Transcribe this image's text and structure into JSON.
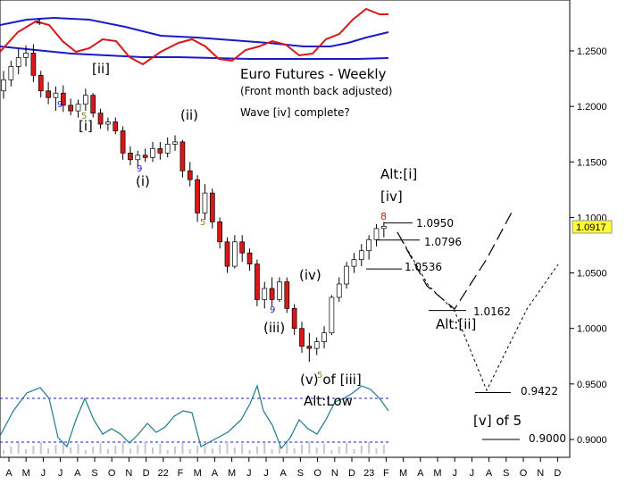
{
  "chart_data": {
    "type": "candlestick",
    "title": "Euro Futures - Weekly",
    "subtitle": "(Front month back adjusted)",
    "note": "Wave [iv] complete?",
    "last_price": "1.0917",
    "y_ticks": [
      "1.2500",
      "1.2000",
      "1.1500",
      "1.1000",
      "1.0500",
      "1.0000",
      "0.9500",
      "0.9000"
    ],
    "y_tick_values": [
      1.25,
      1.2,
      1.15,
      1.1,
      1.05,
      1.0,
      0.95,
      0.9
    ],
    "x_ticks": [
      "A",
      "M",
      "J",
      "J",
      "A",
      "S",
      "O",
      "N",
      "D",
      "22",
      "F",
      "M",
      "A",
      "M",
      "J",
      "J",
      "A",
      "S",
      "O",
      "N",
      "D",
      "23",
      "F",
      "M",
      "A",
      "M",
      "J",
      "J",
      "A",
      "S",
      "O",
      "N",
      "D"
    ],
    "ylim": [
      0.88,
      1.31
    ],
    "candles": [
      [
        1.214,
        1.232,
        1.207,
        1.224
      ],
      [
        1.224,
        1.241,
        1.218,
        1.236
      ],
      [
        1.236,
        1.252,
        1.229,
        1.244
      ],
      [
        1.244,
        1.255,
        1.236,
        1.248
      ],
      [
        1.248,
        1.256,
        1.222,
        1.228
      ],
      [
        1.228,
        1.232,
        1.208,
        1.214
      ],
      [
        1.214,
        1.222,
        1.202,
        1.208
      ],
      [
        1.208,
        1.218,
        1.196,
        1.212
      ],
      [
        1.212,
        1.219,
        1.195,
        1.201
      ],
      [
        1.201,
        1.207,
        1.192,
        1.196
      ],
      [
        1.196,
        1.206,
        1.19,
        1.202
      ],
      [
        1.202,
        1.216,
        1.196,
        1.21
      ],
      [
        1.21,
        1.212,
        1.19,
        1.194
      ],
      [
        1.194,
        1.198,
        1.18,
        1.184
      ],
      [
        1.184,
        1.19,
        1.178,
        1.186
      ],
      [
        1.186,
        1.19,
        1.175,
        1.178
      ],
      [
        1.178,
        1.182,
        1.152,
        1.158
      ],
      [
        1.158,
        1.164,
        1.147,
        1.152
      ],
      [
        1.152,
        1.16,
        1.146,
        1.156
      ],
      [
        1.156,
        1.162,
        1.15,
        1.154
      ],
      [
        1.154,
        1.168,
        1.15,
        1.162
      ],
      [
        1.162,
        1.168,
        1.152,
        1.158
      ],
      [
        1.158,
        1.172,
        1.154,
        1.166
      ],
      [
        1.166,
        1.174,
        1.16,
        1.168
      ],
      [
        1.168,
        1.17,
        1.136,
        1.142
      ],
      [
        1.142,
        1.15,
        1.128,
        1.134
      ],
      [
        1.134,
        1.138,
        1.096,
        1.104
      ],
      [
        1.104,
        1.13,
        1.098,
        1.122
      ],
      [
        1.122,
        1.126,
        1.09,
        1.096
      ],
      [
        1.096,
        1.1,
        1.072,
        1.078
      ],
      [
        1.078,
        1.082,
        1.05,
        1.056
      ],
      [
        1.056,
        1.084,
        1.054,
        1.078
      ],
      [
        1.078,
        1.084,
        1.06,
        1.068
      ],
      [
        1.068,
        1.072,
        1.052,
        1.058
      ],
      [
        1.058,
        1.062,
        1.02,
        1.026
      ],
      [
        1.026,
        1.042,
        1.018,
        1.036
      ],
      [
        1.036,
        1.046,
        1.02,
        1.026
      ],
      [
        1.026,
        1.046,
        1.024,
        1.042
      ],
      [
        1.042,
        1.046,
        1.014,
        1.018
      ],
      [
        1.018,
        1.022,
        0.994,
        1.0
      ],
      [
        1.0,
        1.006,
        0.978,
        0.984
      ],
      [
        0.984,
        0.996,
        0.97,
        0.982
      ],
      [
        0.982,
        0.992,
        0.976,
        0.988
      ],
      [
        0.988,
        1.002,
        0.982,
        0.996
      ],
      [
        0.996,
        1.03,
        0.994,
        1.028
      ],
      [
        1.028,
        1.046,
        1.024,
        1.04
      ],
      [
        1.04,
        1.06,
        1.036,
        1.056
      ],
      [
        1.056,
        1.068,
        1.05,
        1.062
      ],
      [
        1.062,
        1.076,
        1.056,
        1.07
      ],
      [
        1.07,
        1.084,
        1.062,
        1.08
      ],
      [
        1.08,
        1.094,
        1.074,
        1.09
      ],
      [
        1.09,
        1.096,
        1.082,
        1.092
      ]
    ],
    "levels": [
      {
        "label": "1.0950",
        "value": 1.095
      },
      {
        "label": "1.0796",
        "value": 1.0796
      },
      {
        "label": "1.0536",
        "value": 1.0536
      },
      {
        "label": "1.0162",
        "value": 1.0162
      },
      {
        "label": "0.9422",
        "value": 0.9422
      },
      {
        "label": "0.9000",
        "value": 0.9
      }
    ],
    "wave_labels": [
      "[ii]",
      "[i]",
      "(ii)",
      "(i)",
      "(iv)",
      "(iii)",
      "(v) of [iii]",
      "Alt:Low",
      "Alt:[i]",
      "[iv]",
      "Alt:[ii]",
      "[v] of 5"
    ],
    "count_labels": [
      "4",
      "9",
      "5",
      "9",
      "5",
      "9",
      "5",
      "8"
    ],
    "projection_main": [
      [
        1.094,
        0
      ],
      [
        1.016,
        1
      ],
      [
        1.066,
        2
      ],
      [
        1.108,
        3
      ]
    ],
    "projection_alt": [
      [
        1.094,
        0
      ],
      [
        1.016,
        1
      ],
      [
        0.944,
        2
      ],
      [
        1.06,
        3
      ]
    ]
  }
}
